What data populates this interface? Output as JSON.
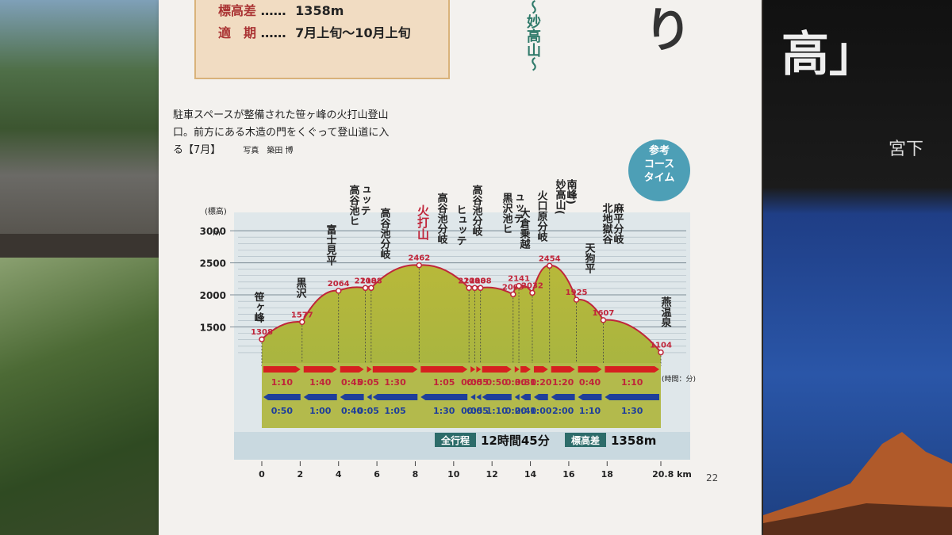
{
  "info": {
    "row1_key": "標高差",
    "row1_dots": "……",
    "row1_val": "1358m",
    "row2_key": "適　期",
    "row2_dots": "……",
    "row2_val": "7月上旬〜10月上旬"
  },
  "side_title": "〜妙高山〜",
  "book_glyph": "り",
  "caption": {
    "text": "駐車スペースが整備された笹ヶ峰の火打山登山口。前方にある木造の門をくぐって登山道に入る【7月】",
    "credit": "写真　築田 博"
  },
  "badge": [
    "参考",
    "コース",
    "タイム"
  ],
  "right_book": {
    "title": "高」",
    "sub": "宮下"
  },
  "page_number": "22",
  "chart_data": {
    "type": "area",
    "ylabel": "(標高)",
    "y_unit": "m",
    "yticks": [
      1500,
      2000,
      2500,
      3000
    ],
    "ylim": [
      1000,
      3100
    ],
    "xlim": [
      0,
      20.8
    ],
    "xticks": [
      "0",
      "2",
      "4",
      "6",
      "8",
      "10",
      "12",
      "14",
      "16",
      "18",
      "20.8 km"
    ],
    "points": [
      {
        "x": 0,
        "y": 1308,
        "label": "笹ヶ峰",
        "elev": "1308"
      },
      {
        "x": 2.1,
        "y": 1577,
        "label": "黒沢",
        "elev": "1577"
      },
      {
        "x": 4.0,
        "y": 2064,
        "label": "富士見平",
        "elev": "2064"
      },
      {
        "x": 5.4,
        "y": 2108,
        "label": "高谷池ヒュッテ",
        "elev": "2108"
      },
      {
        "x": 5.7,
        "y": 2108,
        "label": "高谷池分岐",
        "elev": "2108"
      },
      {
        "x": 8.2,
        "y": 2462,
        "label": "火打山",
        "elev": "2462",
        "highlight": true
      },
      {
        "x": 10.8,
        "y": 2108,
        "label": "高谷池分岐",
        "elev": "2108"
      },
      {
        "x": 11.1,
        "y": 2108,
        "label": "ヒュッテ",
        "elev": "2108"
      },
      {
        "x": 11.4,
        "y": 2108,
        "label": "高谷池分岐",
        "elev": "2108"
      },
      {
        "x": 13.1,
        "y": 2009,
        "label": "黒沢池ヒュッテ",
        "elev": "2009"
      },
      {
        "x": 13.4,
        "y": 2141,
        "label": "大倉乗越",
        "elev": "2141"
      },
      {
        "x": 14.1,
        "y": 2032,
        "label": "火口原分岐",
        "elev": "2032"
      },
      {
        "x": 15.0,
        "y": 2454,
        "label": "妙高山(南峰)",
        "elev": "2454"
      },
      {
        "x": 16.4,
        "y": 1925,
        "label": "天狗平",
        "elev": "1925"
      },
      {
        "x": 17.8,
        "y": 1607,
        "label": "北地獄谷麻平分岐",
        "elev": "1607"
      },
      {
        "x": 20.8,
        "y": 1104,
        "label": "燕温泉",
        "elev": "1104"
      }
    ],
    "forward_times": [
      "1:10",
      "1:40",
      "0:45",
      "0:05",
      "1:30",
      "1:05",
      "0:05",
      "0:05",
      "0:50",
      "0:30",
      "0:30",
      "1:20",
      "1:20",
      "0:40",
      "1:10"
    ],
    "return_times": [
      "0:50",
      "1:00",
      "0:40",
      "0:05",
      "1:05",
      "1:30",
      "0:05",
      "0:05",
      "1:10",
      "0:20",
      "0:40",
      "1:00",
      "2:00",
      "1:10",
      "1:30"
    ],
    "time_unit": "(時間：分)",
    "total_label": "全行程",
    "total_value": "12時間45分",
    "elev_diff_label": "標高差",
    "elev_diff_value": "1358m"
  }
}
